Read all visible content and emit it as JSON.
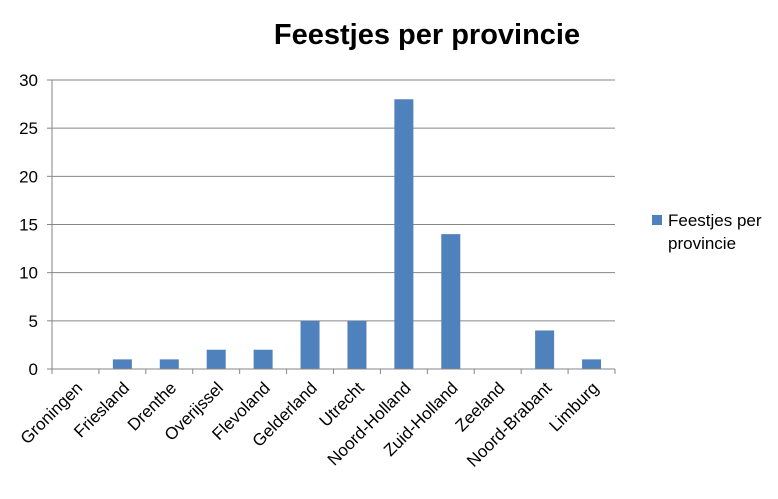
{
  "chart_data": {
    "type": "bar",
    "title": "Feestjes per provincie",
    "categories": [
      "Groningen",
      "Friesland",
      "Drenthe",
      "Overijssel",
      "Flevoland",
      "Gelderland",
      "Utrecht",
      "Noord-Holland",
      "Zuid-Holland",
      "Zeeland",
      "Noord-Brabant",
      "Limburg"
    ],
    "series": [
      {
        "name": "Feestjes per provincie",
        "values": [
          0,
          1,
          1,
          2,
          2,
          5,
          5,
          28,
          14,
          0,
          4,
          1
        ],
        "color": "#4f81bd"
      }
    ],
    "ylim": [
      0,
      30
    ],
    "yticks": [
      "0",
      "5",
      "10",
      "15",
      "20",
      "25",
      "30"
    ],
    "grid": true,
    "legend_position": "right",
    "legend_lines": [
      "Feestjes per",
      "provincie"
    ],
    "colors": {
      "bar": "#4f81bd",
      "grid": "#868686",
      "axis": "#868686"
    }
  }
}
